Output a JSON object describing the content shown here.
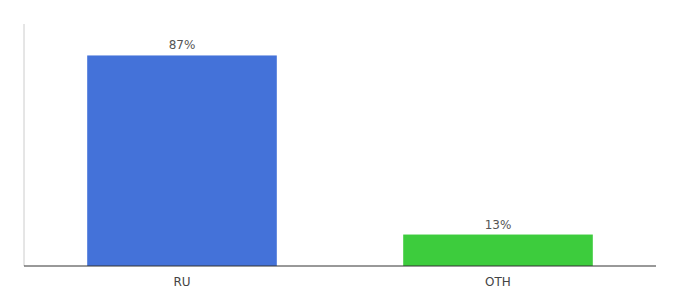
{
  "chart_data": {
    "type": "bar",
    "categories": [
      "RU",
      "OTH"
    ],
    "values": [
      87,
      13
    ],
    "value_labels": [
      "87%",
      "13%"
    ],
    "colors": [
      "#4472d9",
      "#3dcc3d"
    ],
    "ylim": [
      0,
      100
    ],
    "data_labels": true,
    "tick_labels": "x",
    "grid": false
  }
}
